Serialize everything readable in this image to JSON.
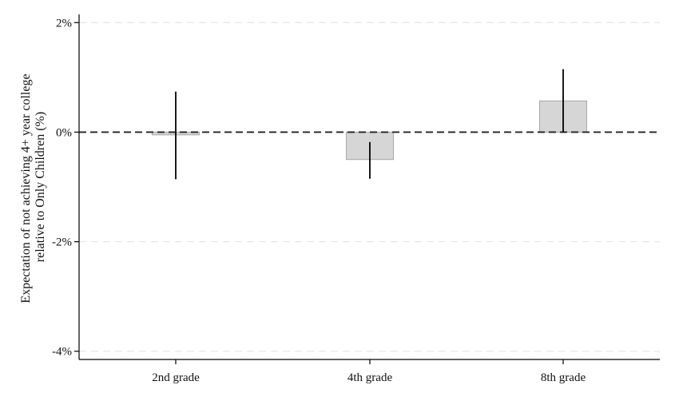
{
  "chart_data": {
    "type": "bar",
    "title": "",
    "xlabel": "",
    "ylabel_lines": [
      "Expectation of not achieving 4+ year college",
      "relative to Only Children (%)"
    ],
    "categories": [
      "2nd grade",
      "4th grade",
      "8th grade"
    ],
    "values": [
      -0.05,
      -0.5,
      0.57
    ],
    "ci_low": [
      -0.86,
      -0.85,
      0.0
    ],
    "ci_high": [
      0.74,
      -0.18,
      1.15
    ],
    "yticks": [
      2,
      0,
      -2,
      -4
    ],
    "ytick_labels": [
      "2%",
      "0%",
      "-2%",
      "-4%"
    ],
    "ylim": [
      -4.15,
      2.15
    ],
    "grid": "horizontal dashed",
    "reference_line": 0,
    "colors": {
      "bar_fill": "#d6d6d6",
      "bar_stroke": "#a8a8a8",
      "error_bar": "#000000",
      "grid": "#e6e6e6",
      "axis": "#000000"
    }
  }
}
